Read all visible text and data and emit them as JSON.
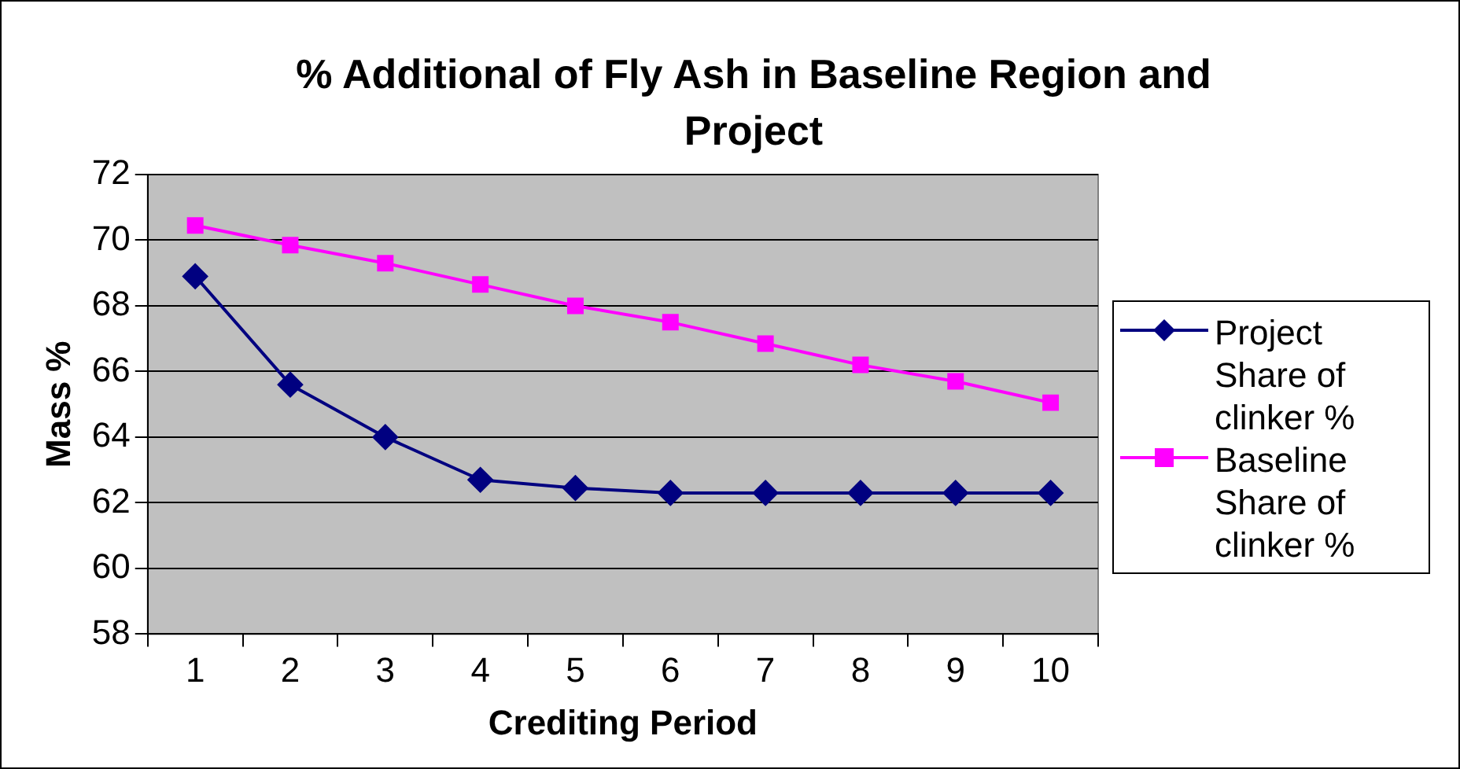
{
  "chart_data": {
    "type": "line",
    "title": "% Additional of Fly Ash in Baseline Region and Project",
    "xlabel": "Crediting Period",
    "ylabel": "Mass %",
    "categories": [
      "1",
      "2",
      "3",
      "4",
      "5",
      "6",
      "7",
      "8",
      "9",
      "10"
    ],
    "series": [
      {
        "name": "Project Share of clinker %",
        "color": "#000080",
        "marker": "diamond",
        "values": [
          68.9,
          65.6,
          64.0,
          62.7,
          62.45,
          62.3,
          62.3,
          62.3,
          62.3,
          62.3
        ]
      },
      {
        "name": "Baseline Share of clinker %",
        "color": "#ff00ff",
        "marker": "square",
        "values": [
          70.45,
          69.85,
          69.3,
          68.65,
          68.0,
          67.5,
          66.85,
          66.2,
          65.7,
          65.05
        ]
      }
    ],
    "ylim": [
      58,
      72
    ],
    "yticks": [
      58,
      60,
      62,
      64,
      66,
      68,
      70,
      72
    ],
    "grid": "y",
    "legend": "right",
    "line_style": "solid"
  }
}
